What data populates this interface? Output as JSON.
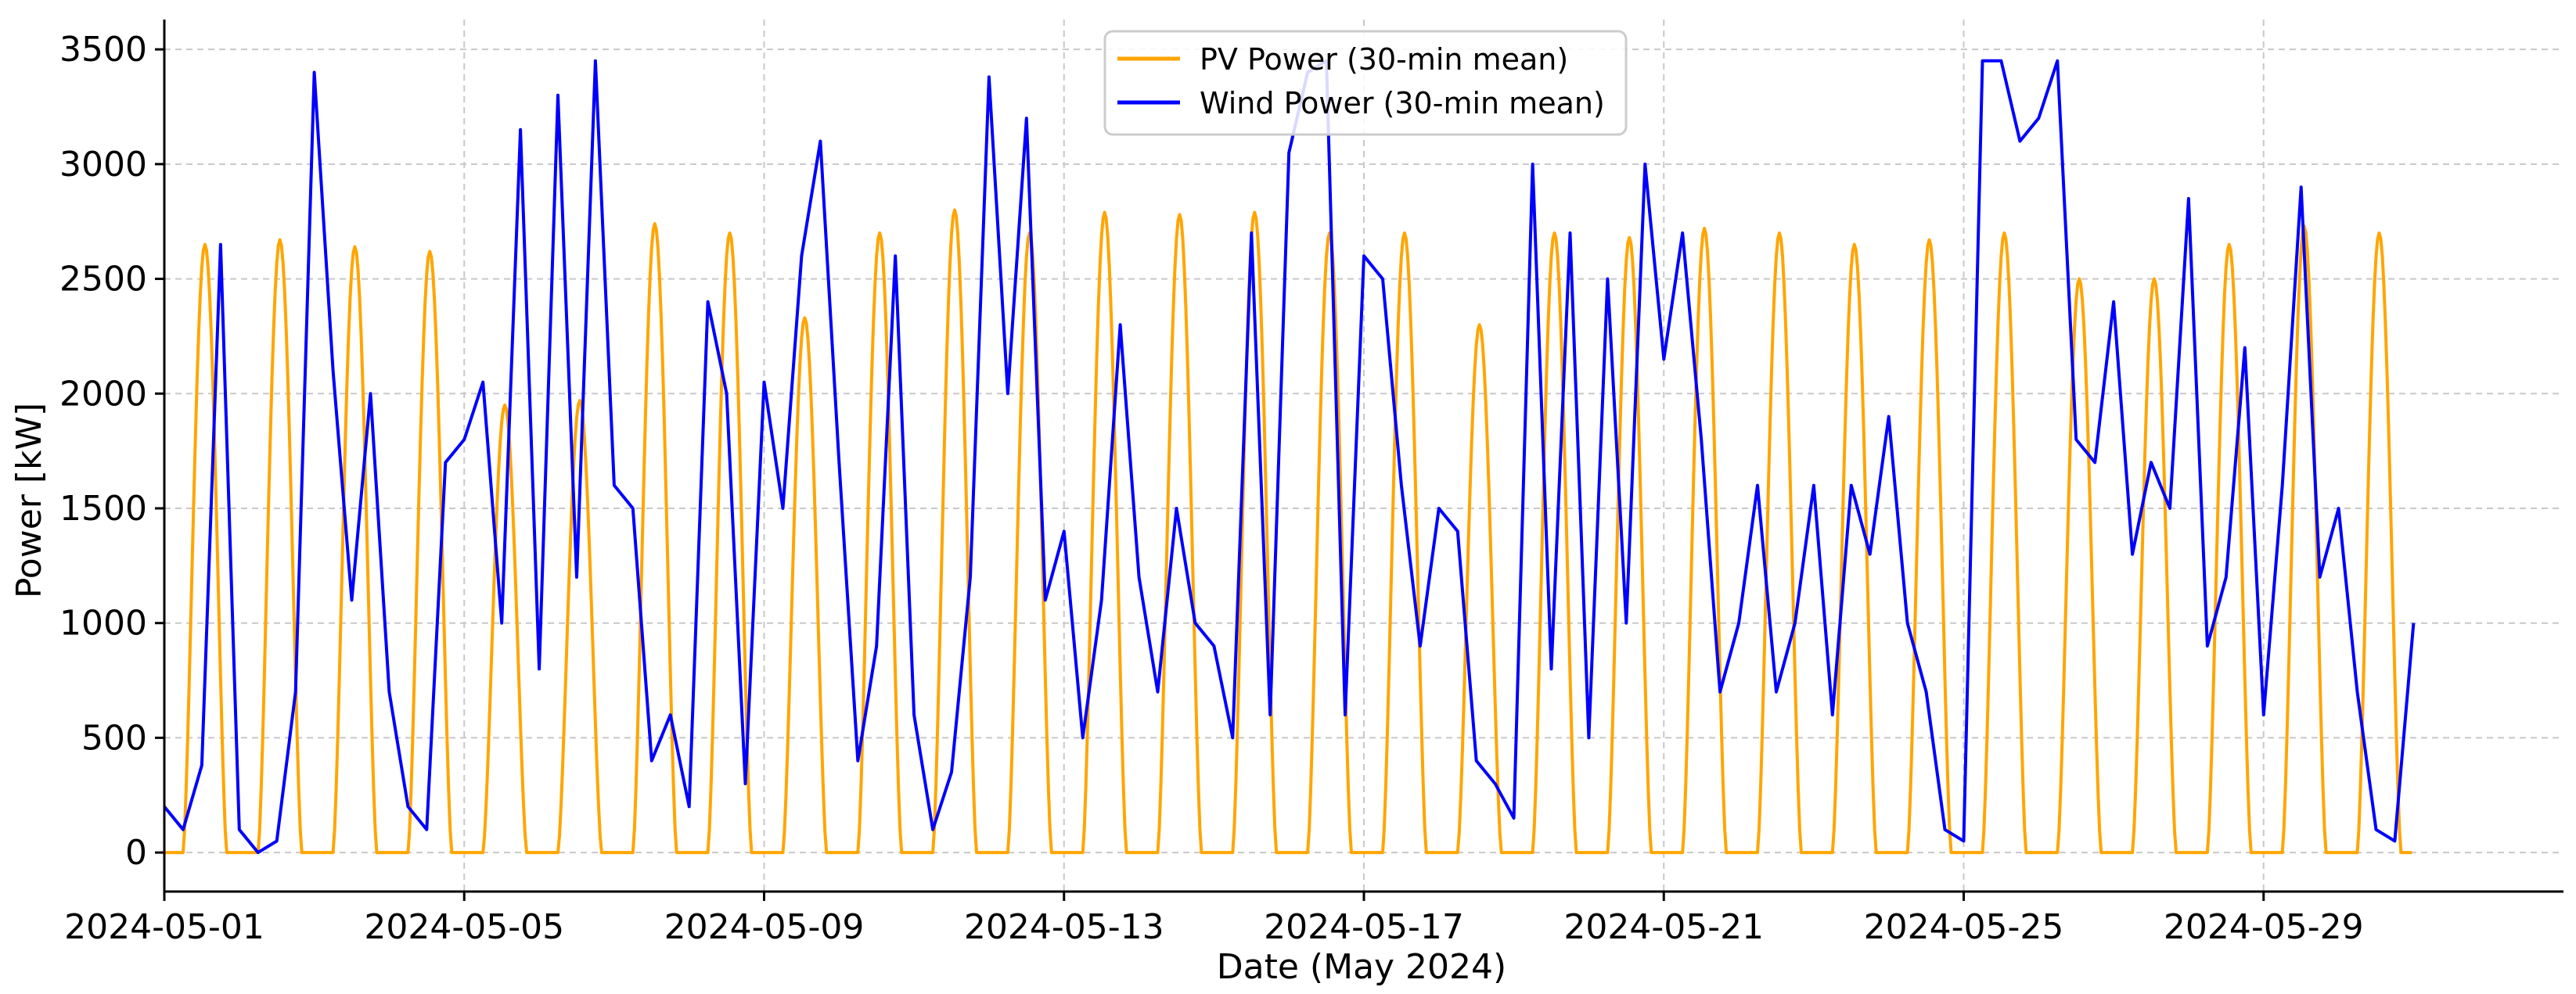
{
  "chart_data": {
    "type": "line",
    "title": "",
    "xlabel": "Date (May 2024)",
    "ylabel": "Power [kW]",
    "x_start": "2024-05-01",
    "x_end": "2024-05-31",
    "xlim": [
      "2024-05-01",
      "2024-06-02"
    ],
    "ylim": [
      -170,
      3630
    ],
    "x_ticks": [
      "2024-05-01",
      "2024-05-05",
      "2024-05-09",
      "2024-05-13",
      "2024-05-17",
      "2024-05-21",
      "2024-05-25",
      "2024-05-29"
    ],
    "y_ticks": [
      0,
      500,
      1000,
      1500,
      2000,
      2500,
      3000,
      3500
    ],
    "grid": true,
    "legend_position": "upper-center",
    "series": [
      {
        "name": "PV Power (30-min mean)",
        "color": "#FFA500",
        "daily_peak": [
          2650,
          2670,
          2640,
          2620,
          1950,
          1970,
          2740,
          2700,
          2330,
          2700,
          2800,
          2700,
          2790,
          2780,
          2790,
          2700,
          2700,
          2300,
          2700,
          2680,
          2720,
          2700,
          2650,
          2670,
          2700,
          2500,
          2500,
          2650,
          2730,
          2700
        ]
      },
      {
        "name": "Wind Power (30-min mean)",
        "color": "#0000FF",
        "x": [
          "2024-05-01 00:00",
          "2024-05-01 06:00",
          "2024-05-01 12:00",
          "2024-05-01 18:00",
          "2024-05-02 00:00",
          "2024-05-02 06:00",
          "2024-05-02 12:00",
          "2024-05-02 18:00",
          "2024-05-03 00:00",
          "2024-05-03 06:00",
          "2024-05-03 12:00",
          "2024-05-03 18:00",
          "2024-05-04 00:00",
          "2024-05-04 06:00",
          "2024-05-04 12:00",
          "2024-05-04 18:00",
          "2024-05-05 00:00",
          "2024-05-05 06:00",
          "2024-05-05 12:00",
          "2024-05-05 18:00",
          "2024-05-06 00:00",
          "2024-05-06 06:00",
          "2024-05-06 12:00",
          "2024-05-06 18:00",
          "2024-05-07 00:00",
          "2024-05-07 06:00",
          "2024-05-07 12:00",
          "2024-05-07 18:00",
          "2024-05-08 00:00",
          "2024-05-08 06:00",
          "2024-05-08 12:00",
          "2024-05-08 18:00",
          "2024-05-09 00:00",
          "2024-05-09 06:00",
          "2024-05-09 12:00",
          "2024-05-09 18:00",
          "2024-05-10 00:00",
          "2024-05-10 06:00",
          "2024-05-10 12:00",
          "2024-05-10 18:00",
          "2024-05-11 00:00",
          "2024-05-11 06:00",
          "2024-05-11 12:00",
          "2024-05-11 18:00",
          "2024-05-12 00:00",
          "2024-05-12 06:00",
          "2024-05-12 12:00",
          "2024-05-12 18:00",
          "2024-05-13 00:00",
          "2024-05-13 06:00",
          "2024-05-13 12:00",
          "2024-05-13 18:00",
          "2024-05-14 00:00",
          "2024-05-14 06:00",
          "2024-05-14 12:00",
          "2024-05-14 18:00",
          "2024-05-15 00:00",
          "2024-05-15 06:00",
          "2024-05-15 12:00",
          "2024-05-15 18:00",
          "2024-05-16 00:00",
          "2024-05-16 06:00",
          "2024-05-16 12:00",
          "2024-05-16 18:00",
          "2024-05-17 00:00",
          "2024-05-17 06:00",
          "2024-05-17 12:00",
          "2024-05-17 18:00",
          "2024-05-18 00:00",
          "2024-05-18 06:00",
          "2024-05-18 12:00",
          "2024-05-18 18:00",
          "2024-05-19 00:00",
          "2024-05-19 06:00",
          "2024-05-19 12:00",
          "2024-05-19 18:00",
          "2024-05-20 00:00",
          "2024-05-20 06:00",
          "2024-05-20 12:00",
          "2024-05-20 18:00",
          "2024-05-21 00:00",
          "2024-05-21 06:00",
          "2024-05-21 12:00",
          "2024-05-21 18:00",
          "2024-05-22 00:00",
          "2024-05-22 06:00",
          "2024-05-22 12:00",
          "2024-05-22 18:00",
          "2024-05-23 00:00",
          "2024-05-23 06:00",
          "2024-05-23 12:00",
          "2024-05-23 18:00",
          "2024-05-24 00:00",
          "2024-05-24 06:00",
          "2024-05-24 12:00",
          "2024-05-24 18:00",
          "2024-05-25 00:00",
          "2024-05-25 06:00",
          "2024-05-25 12:00",
          "2024-05-25 18:00",
          "2024-05-26 00:00",
          "2024-05-26 06:00",
          "2024-05-26 12:00",
          "2024-05-26 18:00",
          "2024-05-27 00:00",
          "2024-05-27 06:00",
          "2024-05-27 12:00",
          "2024-05-27 18:00",
          "2024-05-28 00:00",
          "2024-05-28 06:00",
          "2024-05-28 12:00",
          "2024-05-28 18:00",
          "2024-05-29 00:00",
          "2024-05-29 06:00",
          "2024-05-29 12:00",
          "2024-05-29 18:00",
          "2024-05-30 00:00",
          "2024-05-30 06:00",
          "2024-05-30 12:00",
          "2024-05-30 18:00",
          "2024-05-31 00:00"
        ],
        "values": [
          200,
          100,
          380,
          2650,
          100,
          0,
          50,
          700,
          3400,
          2100,
          1100,
          2000,
          700,
          200,
          100,
          1700,
          1800,
          2050,
          1000,
          3150,
          800,
          3300,
          1200,
          3450,
          1600,
          1500,
          400,
          600,
          200,
          2400,
          2000,
          300,
          2050,
          1500,
          2600,
          3100,
          1700,
          400,
          900,
          2600,
          600,
          100,
          350,
          1200,
          3380,
          2000,
          3200,
          1100,
          1400,
          500,
          1100,
          2300,
          1200,
          700,
          1500,
          1000,
          900,
          500,
          2700,
          600,
          3050,
          3400,
          3450,
          600,
          2600,
          2500,
          1600,
          900,
          1500,
          1400,
          400,
          300,
          150,
          3000,
          800,
          2700,
          500,
          2500,
          1000,
          3000,
          2150,
          2700,
          1800,
          700,
          1000,
          1600,
          700,
          1000,
          1600,
          600,
          1600,
          1300,
          1900,
          1000,
          700,
          100,
          50,
          3450,
          3450,
          3100,
          3200,
          3450,
          1800,
          1700,
          2400,
          1300,
          1700,
          1500,
          2850,
          900,
          1200,
          2200,
          600,
          1600,
          2900,
          1200,
          1500,
          700,
          100,
          50,
          1000
        ]
      }
    ]
  }
}
